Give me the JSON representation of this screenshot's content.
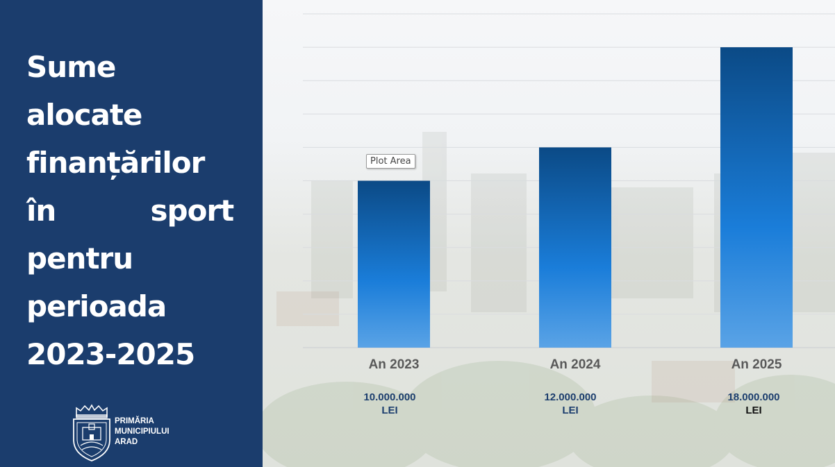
{
  "left_panel": {
    "title_lines": [
      "Sume",
      "alocate",
      "finanțărilor",
      "în          sport",
      "pentru",
      "perioada",
      "2023-2025"
    ],
    "logo": {
      "line1": "PRIMĂRIA",
      "line2": "MUNICIPIULUI",
      "line3": "ARAD"
    },
    "background_color": "#1b3d6d"
  },
  "tooltip": {
    "text": "Plot Area"
  },
  "chart_data": {
    "type": "bar",
    "categories": [
      "An 2023",
      "An 2024",
      "An 2025"
    ],
    "values": [
      10000000,
      12000000,
      18000000
    ],
    "value_labels": [
      {
        "amount": "10.000.000",
        "unit": "LEI"
      },
      {
        "amount": "12.000.000",
        "unit": "LEI"
      },
      {
        "amount": "18.000.000",
        "unit": "LEI"
      }
    ],
    "ylim": [
      0,
      20000000
    ],
    "grid": true,
    "bar_colors": {
      "top": "#0b4a86",
      "middle": "#1a7dd9",
      "bottom": "#5aa3e6"
    }
  }
}
